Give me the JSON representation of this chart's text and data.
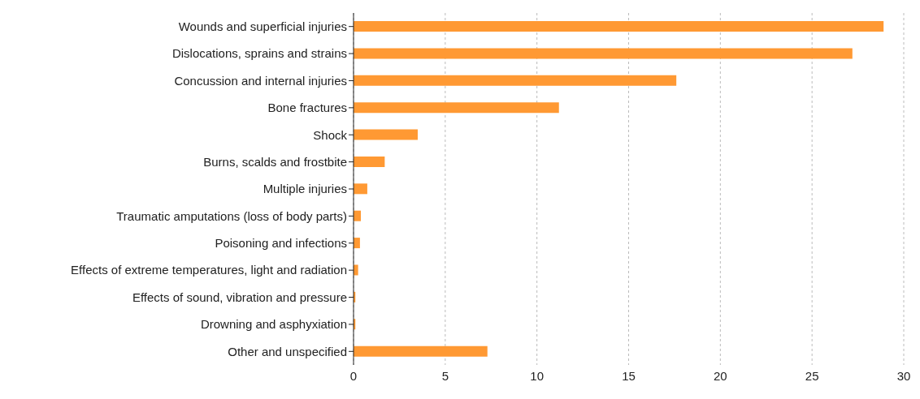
{
  "chart_data": {
    "type": "bar",
    "orientation": "horizontal",
    "categories": [
      "Wounds and superficial injuries",
      "Dislocations, sprains and strains",
      "Concussion and internal injuries",
      "Bone fractures",
      "Shock",
      "Burns, scalds and frostbite",
      "Multiple injuries",
      "Traumatic amputations (loss of body parts)",
      "Poisoning and infections",
      "Effects of extreme temperatures, light and radiation",
      "Effects of sound, vibration and pressure",
      "Drowning and asphyxiation",
      "Other and unspecified"
    ],
    "values": [
      28.9,
      27.2,
      17.6,
      11.2,
      3.5,
      1.7,
      0.75,
      0.4,
      0.35,
      0.25,
      0.1,
      0.1,
      7.3
    ],
    "color": "#ff9933",
    "xlim": [
      0,
      30
    ],
    "xticks": [
      0,
      5,
      10,
      15,
      20,
      25,
      30
    ],
    "grid": "x"
  }
}
